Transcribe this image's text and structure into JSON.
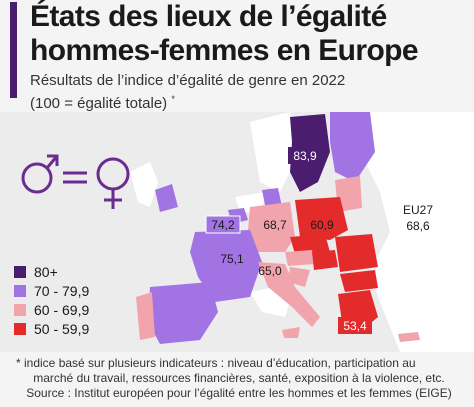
{
  "header": {
    "title_line1": "États des lieux de l’égalité",
    "title_line2": "hommes-femmes en Europe",
    "subtitle_line1": "Résultats de l’indice d’égalité de genre en 2022",
    "subtitle_line2": "(100 = égalité totale)",
    "subtitle_mark": "*"
  },
  "map": {
    "labels": {
      "sweden": "83,9",
      "belgium": "74,2",
      "france": "75,1",
      "germany": "68,7",
      "poland": "60,9",
      "italy": "65,0",
      "greece": "53,4"
    },
    "eu27": {
      "label": "EU27",
      "value": "68,6"
    },
    "colors": {
      "80_plus": "#4b1d6e",
      "70_79": "#a173e3",
      "60_69": "#f2a4ad",
      "50_59": "#e32b2b",
      "non_eu": "#ffffff",
      "sea": "#eeeeee"
    }
  },
  "legend": {
    "items": [
      {
        "label": "80+",
        "color": "#4b1d6e"
      },
      {
        "label": "70 - 79,9",
        "color": "#a173e3"
      },
      {
        "label": "60 - 69,9",
        "color": "#f2a4ad"
      },
      {
        "label": "50 - 59,9",
        "color": "#e32b2b"
      }
    ]
  },
  "footnote": {
    "line1": "* indice basé sur plusieurs indicateurs : niveau d’éducation, participation au",
    "line2": "marché du travail, ressources financières, santé, exposition à la violence, etc.",
    "line3": "Source : Institut européen pour l’égalité entre les hommes et les femmes (EIGE)"
  }
}
